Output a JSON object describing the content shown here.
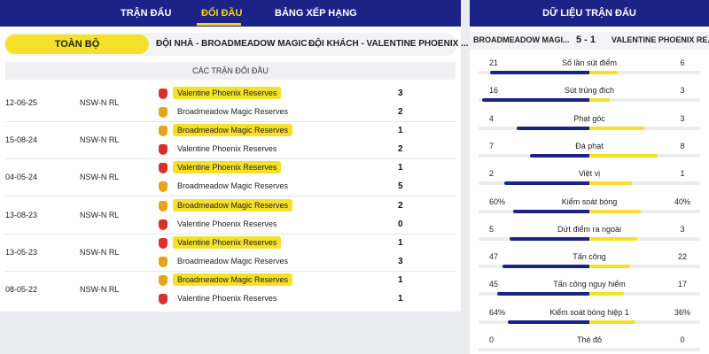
{
  "nav": {
    "tabs": [
      "TRẬN ĐẤU",
      "ĐỐI ĐẦU",
      "BẢNG XẾP HẠNG"
    ]
  },
  "filters": {
    "all": "TOÀN BỘ",
    "home": "ĐỘI NHÀ - BROADMEADOW MAGIC ...",
    "away": "ĐỘI KHÁCH - VALENTINE PHOENIX ..."
  },
  "h2h": {
    "title": "CÁC TRẬN ĐỐI ĐẦU",
    "matches": [
      {
        "date": "12-06-25",
        "league": "NSW-N RL",
        "team1": "Valentine Phoenix Reserves",
        "score1": "3",
        "team2": "Broadmeadow Magic Reserves",
        "score2": "2"
      },
      {
        "date": "15-08-24",
        "league": "NSW-N RL",
        "team1": "Broadmeadow Magic Reserves",
        "score1": "1",
        "team2": "Valentine Phoenix Reserves",
        "score2": "2"
      },
      {
        "date": "04-05-24",
        "league": "NSW-N RL",
        "team1": "Valentine Phoenix Reserves",
        "score1": "1",
        "team2": "Broadmeadow Magic Reserves",
        "score2": "5"
      },
      {
        "date": "13-08-23",
        "league": "NSW-N RL",
        "team1": "Broadmeadow Magic Reserves",
        "score1": "2",
        "team2": "Valentine Phoenix Reserves",
        "score2": "0"
      },
      {
        "date": "13-05-23",
        "league": "NSW-N RL",
        "team1": "Valentine Phoenix Reserves",
        "score1": "1",
        "team2": "Broadmeadow Magic Reserves",
        "score2": "3"
      },
      {
        "date": "08-05-22",
        "league": "NSW-N RL",
        "team1": "Broadmeadow Magic Reserves",
        "score1": "1",
        "team2": "Valentine Phoenix Reserves",
        "score2": "1"
      }
    ]
  },
  "stats": {
    "title": "DỮ LIỆU TRẬN ĐẤU",
    "home_team": "BROADMEADOW MAGI...",
    "score": "5 - 1",
    "away_team": "VALENTINE PHOENIX RE...",
    "rows": [
      {
        "label": "Số lần sút điểm",
        "home": "21",
        "away": "6"
      },
      {
        "label": "Sút trúng đích",
        "home": "16",
        "away": "3"
      },
      {
        "label": "Phạt góc",
        "home": "4",
        "away": "3"
      },
      {
        "label": "Đá phạt",
        "home": "7",
        "away": "8"
      },
      {
        "label": "Việt vị",
        "home": "2",
        "away": "1"
      },
      {
        "label": "Kiểm soát bóng",
        "home": "60%",
        "away": "40%"
      },
      {
        "label": "Dứt điểm ra ngoài",
        "home": "5",
        "away": "3"
      },
      {
        "label": "Tấn công",
        "home": "47",
        "away": "22"
      },
      {
        "label": "Tấn công nguy hiểm",
        "home": "45",
        "away": "17"
      },
      {
        "label": "Kiểm soát bóng hiệp 1",
        "home": "64%",
        "away": "36%"
      },
      {
        "label": "Thẻ đỏ",
        "home": "0",
        "away": "0"
      }
    ]
  }
}
